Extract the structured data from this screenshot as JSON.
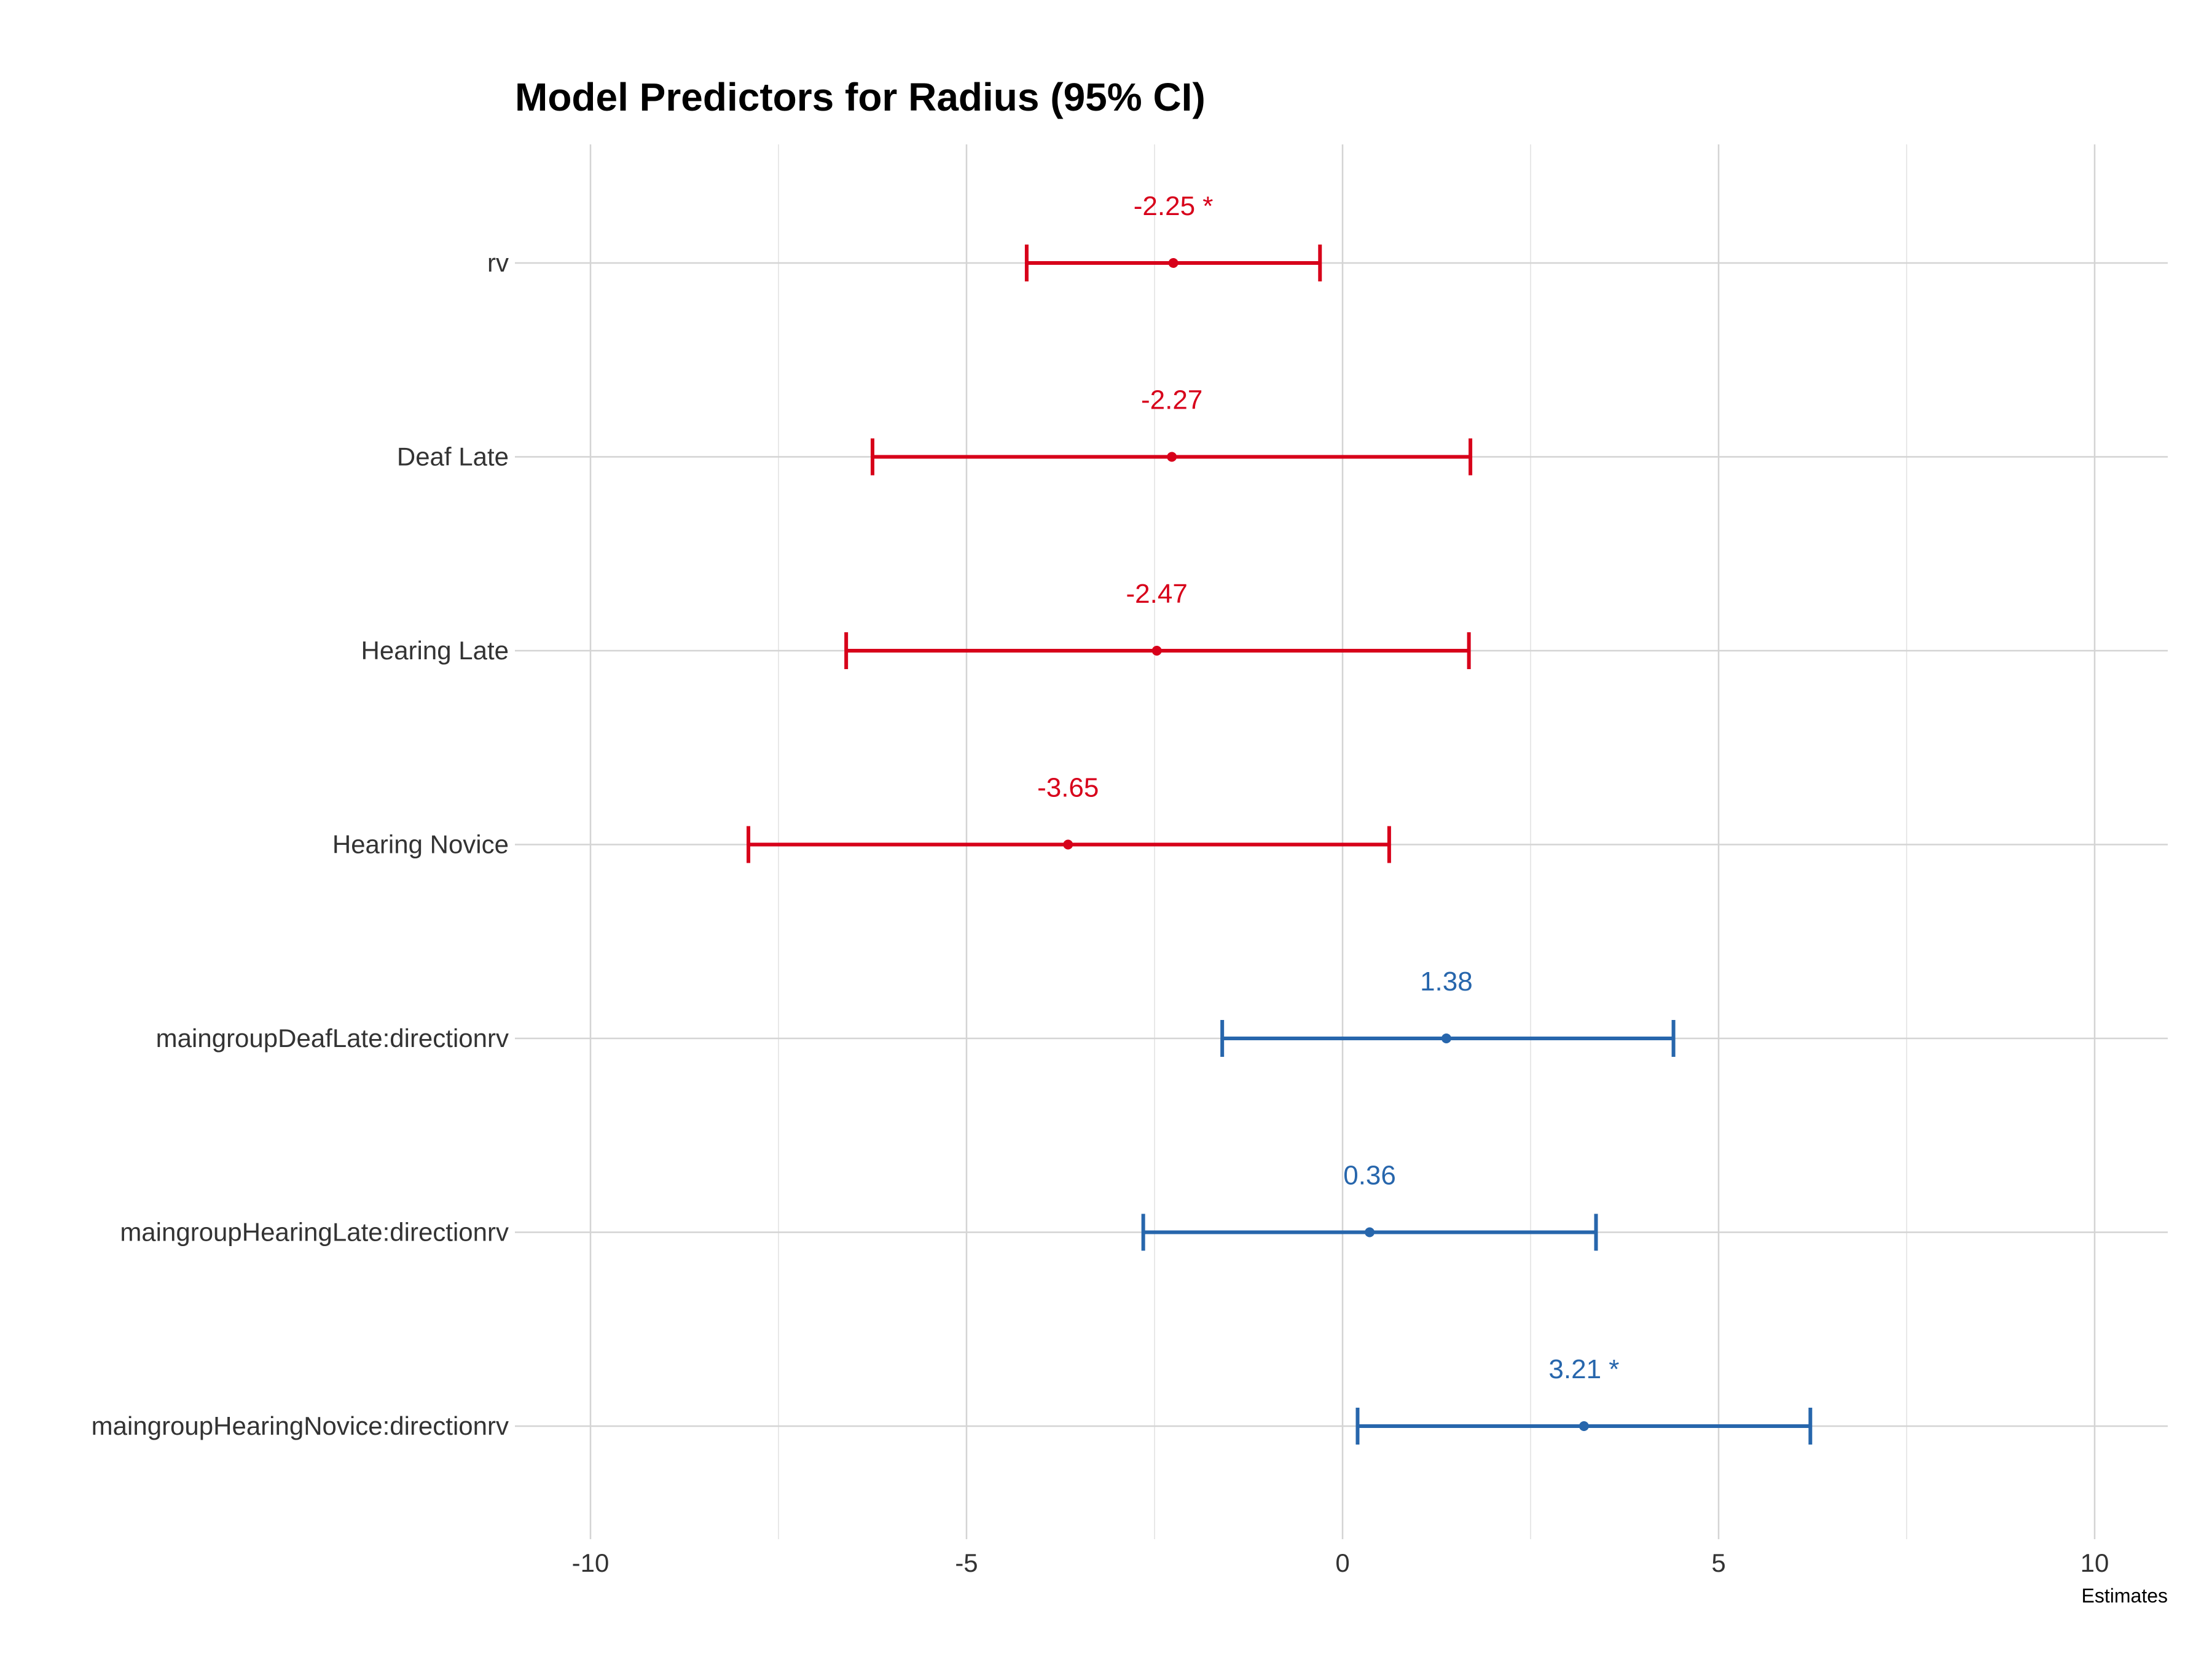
{
  "chart_data": {
    "type": "forest",
    "title": "Model Predictors for Radius (95% CI)",
    "xlabel": "Estimates",
    "xlim": [
      -11,
      11
    ],
    "xticks": [
      -10,
      -5,
      0,
      5,
      10
    ],
    "grid": true,
    "colors": {
      "negative": "#d7001a",
      "positive": "#2766ac"
    },
    "terms": [
      {
        "label": "rv",
        "estimate": -2.25,
        "lower": -4.2,
        "upper": -0.3,
        "value_label": "-2.25 *",
        "sign": "negative"
      },
      {
        "label": "Deaf Late",
        "estimate": -2.27,
        "lower": -6.25,
        "upper": 1.7,
        "value_label": "-2.27",
        "sign": "negative"
      },
      {
        "label": "Hearing Late",
        "estimate": -2.47,
        "lower": -6.6,
        "upper": 1.68,
        "value_label": "-2.47",
        "sign": "negative"
      },
      {
        "label": "Hearing Novice",
        "estimate": -3.65,
        "lower": -7.9,
        "upper": 0.62,
        "value_label": "-3.65",
        "sign": "negative"
      },
      {
        "label": "maingroupDeafLate:directionrv",
        "estimate": 1.38,
        "lower": -1.6,
        "upper": 4.4,
        "value_label": "1.38",
        "sign": "positive"
      },
      {
        "label": "maingroupHearingLate:directionrv",
        "estimate": 0.36,
        "lower": -2.65,
        "upper": 3.37,
        "value_label": "0.36",
        "sign": "positive"
      },
      {
        "label": "maingroupHearingNovice:directionrv",
        "estimate": 3.21,
        "lower": 0.2,
        "upper": 6.22,
        "value_label": "3.21 *",
        "sign": "positive"
      }
    ]
  }
}
